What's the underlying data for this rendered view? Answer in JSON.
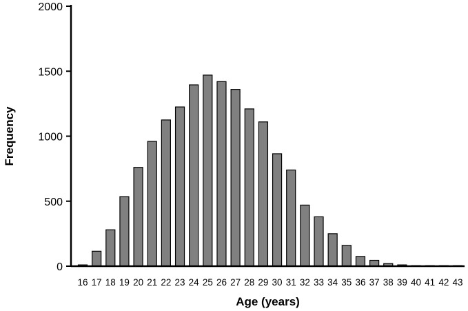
{
  "chart_data": {
    "type": "bar",
    "title": "",
    "xlabel": "Age (years)",
    "ylabel": "Frequency",
    "ylim": [
      0,
      2000
    ],
    "yticks": [
      0,
      500,
      1000,
      1500,
      2000
    ],
    "grid": false,
    "legend": "none",
    "bar_color": "#808080",
    "bar_outline": "#000000",
    "categories": [
      "16",
      "17",
      "18",
      "19",
      "20",
      "21",
      "22",
      "23",
      "24",
      "25",
      "26",
      "27",
      "28",
      "29",
      "30",
      "31",
      "32",
      "33",
      "34",
      "35",
      "36",
      "37",
      "38",
      "39",
      "40",
      "41",
      "42",
      "43"
    ],
    "values": [
      10,
      115,
      280,
      535,
      760,
      960,
      1125,
      1225,
      1395,
      1470,
      1420,
      1360,
      1210,
      1110,
      865,
      740,
      470,
      380,
      250,
      160,
      75,
      45,
      20,
      10,
      3,
      2,
      1,
      1
    ]
  }
}
